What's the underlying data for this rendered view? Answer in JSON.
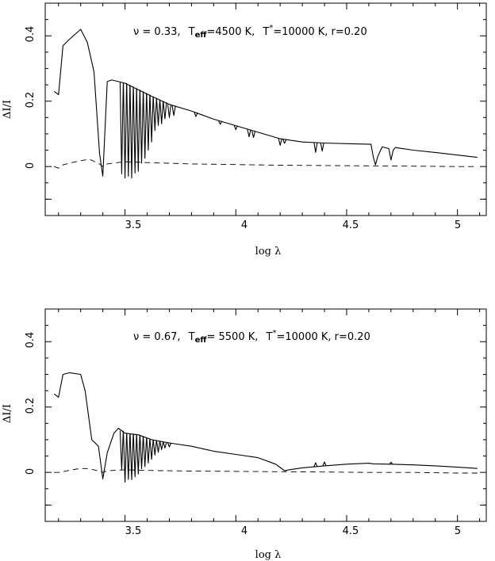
{
  "chart_data": [
    {
      "type": "line",
      "xlabel": "log λ",
      "ylabel": "ΔI/I",
      "xlim": [
        3.14,
        5.13
      ],
      "ylim": [
        -0.15,
        0.5
      ],
      "xticks": [
        "3.5",
        "4",
        "4.5",
        "5"
      ],
      "yticks": [
        "0",
        "0.2",
        "0.4"
      ],
      "annotation": {
        "nu": "ν = 0.33,",
        "teff_label": "T",
        "teff_sub": "eff",
        "teff_value": "=4500 K,",
        "tstar_label": "T",
        "tstar_sup": "*",
        "tstar_value": "=10000 K, r=0.20"
      },
      "series": [
        {
          "style": "solid",
          "x": [
            3.18,
            3.2,
            3.22,
            3.25,
            3.3,
            3.33,
            3.36,
            3.385,
            3.4,
            3.42,
            3.44,
            3.5,
            3.56,
            3.62,
            3.7,
            3.8,
            3.9,
            4.0,
            4.1,
            4.2,
            4.3,
            4.4,
            4.5,
            4.61,
            4.62,
            4.63,
            4.64,
            4.66,
            4.69,
            4.7,
            4.71,
            4.72,
            4.8,
            4.9,
            5.0,
            5.09
          ],
          "y": [
            0.23,
            0.22,
            0.37,
            0.39,
            0.42,
            0.38,
            0.29,
            0.04,
            -0.03,
            0.26,
            0.265,
            0.255,
            0.235,
            0.215,
            0.19,
            0.17,
            0.145,
            0.125,
            0.105,
            0.085,
            0.075,
            0.072,
            0.07,
            0.068,
            0.03,
            0.005,
            0.03,
            0.06,
            0.055,
            0.02,
            0.05,
            0.058,
            0.05,
            0.043,
            0.035,
            0.028
          ]
        },
        {
          "style": "dashed",
          "x": [
            3.18,
            3.2,
            3.22,
            3.26,
            3.3,
            3.34,
            3.38,
            3.4,
            3.42,
            3.5,
            3.6,
            3.7,
            3.8,
            4.0,
            4.2,
            4.4,
            4.6,
            4.8,
            5.0,
            5.09
          ],
          "y": [
            0.0,
            -0.005,
            0.005,
            0.012,
            0.018,
            0.022,
            0.01,
            0.0,
            0.008,
            0.015,
            0.012,
            0.01,
            0.008,
            0.006,
            0.004,
            0.003,
            0.002,
            0.001,
            0.0,
            0.0
          ]
        }
      ]
    },
    {
      "type": "line",
      "xlabel": "log λ",
      "ylabel": "ΔI/I",
      "xlim": [
        3.14,
        5.13
      ],
      "ylim": [
        -0.15,
        0.5
      ],
      "xticks": [
        "3.5",
        "4",
        "4.5",
        "5"
      ],
      "yticks": [
        "0",
        "0.2",
        "0.4"
      ],
      "annotation": {
        "nu": "ν = 0.67,",
        "teff_label": "T",
        "teff_sub": "eff",
        "teff_value": "= 5500 K,",
        "tstar_label": "T",
        "tstar_sup": "*",
        "tstar_value": "=10000 K, r=0.20"
      },
      "series": [
        {
          "style": "solid",
          "x": [
            3.18,
            3.2,
            3.22,
            3.25,
            3.3,
            3.32,
            3.35,
            3.38,
            3.4,
            3.42,
            3.45,
            3.47,
            3.5,
            3.56,
            3.62,
            3.7,
            3.8,
            3.9,
            4.0,
            4.1,
            4.18,
            4.2,
            4.22,
            4.24,
            4.3,
            4.4,
            4.5,
            4.6,
            4.62,
            4.7,
            4.8,
            4.9,
            5.0,
            5.09
          ],
          "y": [
            0.24,
            0.23,
            0.3,
            0.305,
            0.3,
            0.25,
            0.1,
            0.08,
            -0.02,
            0.06,
            0.12,
            0.135,
            0.12,
            0.115,
            0.1,
            0.09,
            0.08,
            0.065,
            0.055,
            0.045,
            0.025,
            0.015,
            0.005,
            0.008,
            0.014,
            0.02,
            0.025,
            0.028,
            0.026,
            0.025,
            0.023,
            0.02,
            0.016,
            0.012
          ]
        },
        {
          "style": "dashed",
          "x": [
            3.18,
            3.2,
            3.24,
            3.28,
            3.32,
            3.36,
            3.4,
            3.42,
            3.5,
            3.6,
            3.7,
            3.8,
            4.0,
            4.2,
            4.4,
            4.6,
            4.8,
            5.0,
            5.09
          ],
          "y": [
            0.0,
            0.0,
            0.005,
            0.01,
            0.012,
            0.008,
            0.0,
            0.005,
            0.008,
            0.006,
            0.005,
            0.004,
            0.003,
            0.002,
            0.001,
            0.0,
            0.0,
            -0.002,
            -0.002
          ]
        }
      ]
    }
  ]
}
